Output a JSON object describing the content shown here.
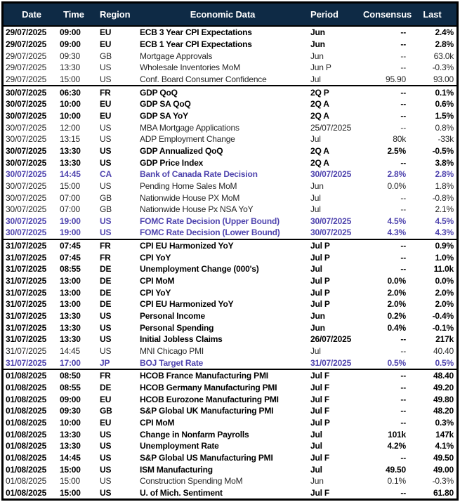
{
  "colors": {
    "header_bg": "#0e2a45",
    "header_text": "#ffffff",
    "highlight": "#4f44ae",
    "normal_text": "#262626",
    "bold_text": "#000000",
    "border": "#000000"
  },
  "table": {
    "columns": [
      {
        "key": "date",
        "label": "Date"
      },
      {
        "key": "time",
        "label": "Time"
      },
      {
        "key": "region",
        "label": "Region"
      },
      {
        "key": "event",
        "label": "Economic Data"
      },
      {
        "key": "period",
        "label": "Period"
      },
      {
        "key": "consensus",
        "label": "Consensus"
      },
      {
        "key": "last",
        "label": "Last"
      }
    ],
    "sections": [
      {
        "rows": [
          {
            "date": "29/07/2025",
            "time": "09:00",
            "region": "EU",
            "event": "ECB 3 Year CPI Expectations",
            "period": "Jun",
            "consensus": "--",
            "last": "2.4%",
            "style": "bold"
          },
          {
            "date": "29/07/2025",
            "time": "09:00",
            "region": "EU",
            "event": "ECB 1 Year CPI Expectations",
            "period": "Jun",
            "consensus": "--",
            "last": "2.8%",
            "style": "bold"
          },
          {
            "date": "29/07/2025",
            "time": "09:30",
            "region": "GB",
            "event": "Mortgage Approvals",
            "period": "Jun",
            "consensus": "--",
            "last": "63.0k",
            "style": "normal"
          },
          {
            "date": "29/07/2025",
            "time": "13:30",
            "region": "US",
            "event": "Wholesale Inventories MoM",
            "period": "Jun P",
            "consensus": "--",
            "last": "-0.3%",
            "style": "normal"
          },
          {
            "date": "29/07/2025",
            "time": "15:00",
            "region": "US",
            "event": "Conf. Board Consumer Confidence",
            "period": "Jul",
            "consensus": "95.90",
            "last": "93.00",
            "style": "normal"
          }
        ]
      },
      {
        "rows": [
          {
            "date": "30/07/2025",
            "time": "06:30",
            "region": "FR",
            "event": "GDP QoQ",
            "period": "2Q P",
            "consensus": "--",
            "last": "0.1%",
            "style": "bold"
          },
          {
            "date": "30/07/2025",
            "time": "10:00",
            "region": "EU",
            "event": "GDP SA QoQ",
            "period": "2Q A",
            "consensus": "--",
            "last": "0.6%",
            "style": "bold"
          },
          {
            "date": "30/07/2025",
            "time": "10:00",
            "region": "EU",
            "event": "GDP SA YoY",
            "period": "2Q A",
            "consensus": "--",
            "last": "1.5%",
            "style": "bold"
          },
          {
            "date": "30/07/2025",
            "time": "12:00",
            "region": "US",
            "event": "MBA Mortgage Applications",
            "period": "25/07/2025",
            "consensus": "--",
            "last": "0.8%",
            "style": "normal"
          },
          {
            "date": "30/07/2025",
            "time": "13:15",
            "region": "US",
            "event": "ADP Employment Change",
            "period": "Jul",
            "consensus": "80k",
            "last": "-33k",
            "style": "normal"
          },
          {
            "date": "30/07/2025",
            "time": "13:30",
            "region": "US",
            "event": "GDP Annualized QoQ",
            "period": "2Q A",
            "consensus": "2.5%",
            "last": "-0.5%",
            "style": "bold"
          },
          {
            "date": "30/07/2025",
            "time": "13:30",
            "region": "US",
            "event": "GDP Price Index",
            "period": "2Q A",
            "consensus": "--",
            "last": "3.8%",
            "style": "bold"
          },
          {
            "date": "30/07/2025",
            "time": "14:45",
            "region": "CA",
            "event": "Bank of Canada Rate Decision",
            "period": "30/07/2025",
            "consensus": "2.8%",
            "last": "2.8%",
            "style": "purple"
          },
          {
            "date": "30/07/2025",
            "time": "15:00",
            "region": "US",
            "event": "Pending Home Sales MoM",
            "period": "Jun",
            "consensus": "0.0%",
            "last": "1.8%",
            "style": "normal"
          },
          {
            "date": "30/07/2025",
            "time": "07:00",
            "region": "GB",
            "event": "Nationwide House PX MoM",
            "period": "Jul",
            "consensus": "--",
            "last": "-0.8%",
            "style": "normal"
          },
          {
            "date": "30/07/2025",
            "time": "07:00",
            "region": "GB",
            "event": "Nationwide House Px NSA YoY",
            "period": "Jul",
            "consensus": "--",
            "last": "2.1%",
            "style": "normal"
          },
          {
            "date": "30/07/2025",
            "time": "19:00",
            "region": "US",
            "event": "FOMC Rate Decision (Upper Bound)",
            "period": "30/07/2025",
            "consensus": "4.5%",
            "last": "4.5%",
            "style": "purple"
          },
          {
            "date": "30/07/2025",
            "time": "19:00",
            "region": "US",
            "event": "FOMC Rate Decision (Lower Bound)",
            "period": "30/07/2025",
            "consensus": "4.3%",
            "last": "4.3%",
            "style": "purple"
          }
        ]
      },
      {
        "rows": [
          {
            "date": "31/07/2025",
            "time": "07:45",
            "region": "FR",
            "event": "CPI EU Harmonized YoY",
            "period": "Jul P",
            "consensus": "--",
            "last": "0.9%",
            "style": "bold"
          },
          {
            "date": "31/07/2025",
            "time": "07:45",
            "region": "FR",
            "event": "CPI YoY",
            "period": "Jul P",
            "consensus": "--",
            "last": "1.0%",
            "style": "bold"
          },
          {
            "date": "31/07/2025",
            "time": "08:55",
            "region": "DE",
            "event": "Unemployment Change (000's)",
            "period": "Jul",
            "consensus": "--",
            "last": "11.0k",
            "style": "bold"
          },
          {
            "date": "31/07/2025",
            "time": "13:00",
            "region": "DE",
            "event": "CPI MoM",
            "period": "Jul P",
            "consensus": "0.0%",
            "last": "0.0%",
            "style": "bold"
          },
          {
            "date": "31/07/2025",
            "time": "13:00",
            "region": "DE",
            "event": "CPI YoY",
            "period": "Jul P",
            "consensus": "2.0%",
            "last": "2.0%",
            "style": "bold"
          },
          {
            "date": "31/07/2025",
            "time": "13:00",
            "region": "DE",
            "event": "CPI EU Harmonized YoY",
            "period": "Jul P",
            "consensus": "2.0%",
            "last": "2.0%",
            "style": "bold"
          },
          {
            "date": "31/07/2025",
            "time": "13:30",
            "region": "US",
            "event": "Personal Income",
            "period": "Jun",
            "consensus": "0.2%",
            "last": "-0.4%",
            "style": "bold"
          },
          {
            "date": "31/07/2025",
            "time": "13:30",
            "region": "US",
            "event": "Personal Spending",
            "period": "Jun",
            "consensus": "0.4%",
            "last": "-0.1%",
            "style": "bold"
          },
          {
            "date": "31/07/2025",
            "time": "13:30",
            "region": "US",
            "event": "Initial Jobless Claims",
            "period": "26/07/2025",
            "consensus": "--",
            "last": "217k",
            "style": "bold"
          },
          {
            "date": "31/07/2025",
            "time": "14:45",
            "region": "US",
            "event": "MNI Chicago PMI",
            "period": "Jul",
            "consensus": "--",
            "last": "40.40",
            "style": "normal"
          },
          {
            "date": "31/07/2025",
            "time": "17:00",
            "region": "JP",
            "event": "BOJ Target Rate",
            "period": "31/07/2025",
            "consensus": "0.5%",
            "last": "0.5%",
            "style": "purple"
          }
        ]
      },
      {
        "rows": [
          {
            "date": "01/08/2025",
            "time": "08:50",
            "region": "FR",
            "event": "HCOB France Manufacturing PMI",
            "period": "Jul F",
            "consensus": "--",
            "last": "48.40",
            "style": "bold"
          },
          {
            "date": "01/08/2025",
            "time": "08:55",
            "region": "DE",
            "event": "HCOB Germany Manufacturing PMI",
            "period": "Jul F",
            "consensus": "--",
            "last": "49.20",
            "style": "bold"
          },
          {
            "date": "01/08/2025",
            "time": "09:00",
            "region": "EU",
            "event": "HCOB Eurozone Manufacturing PMI",
            "period": "Jul F",
            "consensus": "--",
            "last": "49.80",
            "style": "bold"
          },
          {
            "date": "01/08/2025",
            "time": "09:30",
            "region": "GB",
            "event": "S&P Global UK Manufacturing PMI",
            "period": "Jul F",
            "consensus": "--",
            "last": "48.20",
            "style": "bold"
          },
          {
            "date": "01/08/2025",
            "time": "10:00",
            "region": "EU",
            "event": "CPI MoM",
            "period": "Jul P",
            "consensus": "--",
            "last": "0.3%",
            "style": "bold"
          },
          {
            "date": "01/08/2025",
            "time": "13:30",
            "region": "US",
            "event": "Change in Nonfarm Payrolls",
            "period": "Jul",
            "consensus": "101k",
            "last": "147k",
            "style": "bold"
          },
          {
            "date": "01/08/2025",
            "time": "13:30",
            "region": "US",
            "event": "Unemployment Rate",
            "period": "Jul",
            "consensus": "4.2%",
            "last": "4.1%",
            "style": "bold"
          },
          {
            "date": "01/08/2025",
            "time": "14:45",
            "region": "US",
            "event": "S&P Global US Manufacturing PMI",
            "period": "Jul F",
            "consensus": "--",
            "last": "49.50",
            "style": "bold"
          },
          {
            "date": "01/08/2025",
            "time": "15:00",
            "region": "US",
            "event": "ISM Manufacturing",
            "period": "Jul",
            "consensus": "49.50",
            "last": "49.00",
            "style": "bold"
          },
          {
            "date": "01/08/2025",
            "time": "15:00",
            "region": "US",
            "event": "Construction Spending MoM",
            "period": "Jun",
            "consensus": "0.1%",
            "last": "-0.3%",
            "style": "normal"
          },
          {
            "date": "01/08/2025",
            "time": "15:00",
            "region": "US",
            "event": "U. of Mich. Sentiment",
            "period": "Jul F",
            "consensus": "--",
            "last": "61.80",
            "style": "bold"
          }
        ]
      }
    ]
  }
}
